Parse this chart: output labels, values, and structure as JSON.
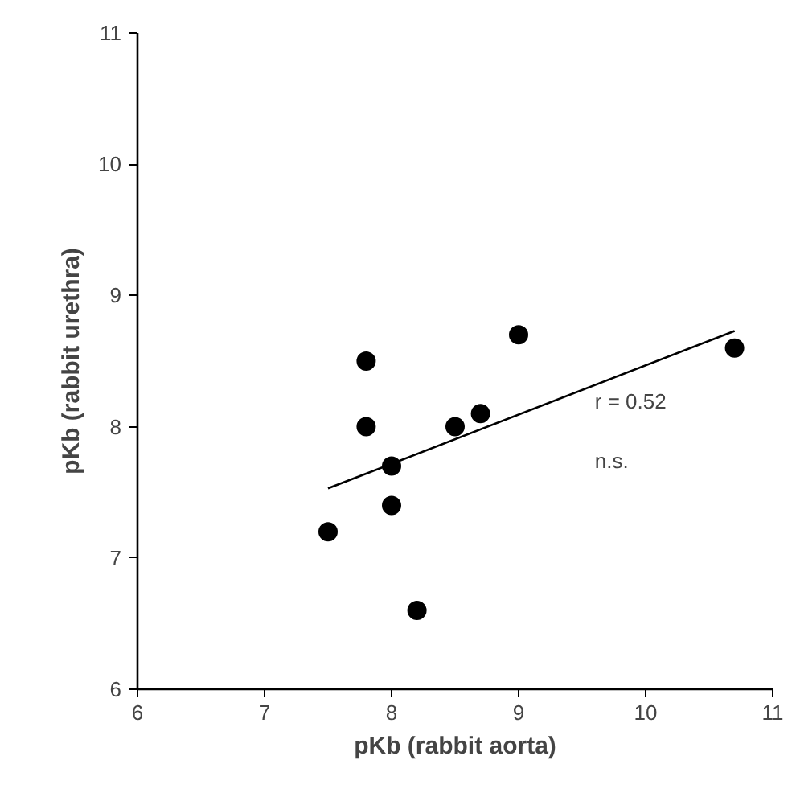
{
  "chart_data": {
    "type": "scatter",
    "xlabel": "pKb (rabbit aorta)",
    "ylabel": "pKb (rabbit urethra)",
    "series": [
      {
        "color": "#000000",
        "x": [
          7.5,
          7.8,
          7.8,
          8.0,
          8.0,
          8.2,
          8.5,
          8.7,
          9.0,
          10.7
        ],
        "values": [
          7.2,
          8.5,
          8.0,
          7.7,
          7.4,
          6.6,
          8.0,
          8.1,
          8.7,
          8.6
        ],
        "marker": "circle"
      },
      {
        "type": "line",
        "color": "#000000",
        "x": [
          7.5,
          10.7
        ],
        "values": [
          7.53,
          8.73
        ],
        "line_style": "solid"
      }
    ],
    "xlim": [
      6,
      11
    ],
    "ylim": [
      6,
      11
    ],
    "xticks": [
      6,
      7,
      8,
      9,
      10,
      11
    ],
    "yticks": [
      6,
      7,
      8,
      9,
      10,
      11
    ],
    "annotations": [
      "r = 0.52",
      "n.s."
    ]
  }
}
